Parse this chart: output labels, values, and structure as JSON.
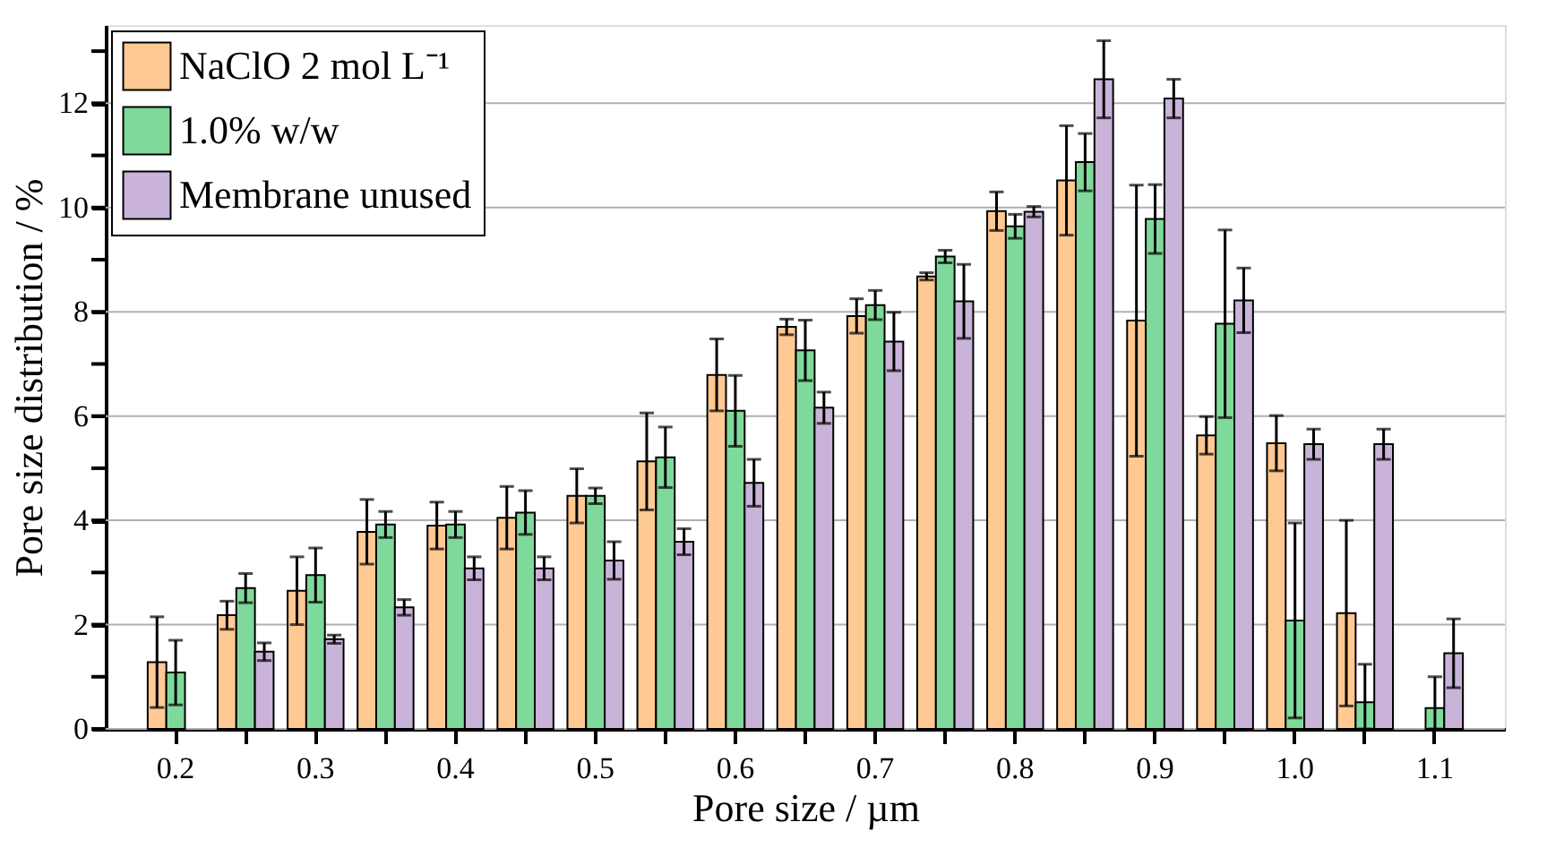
{
  "chart_data": {
    "type": "bar",
    "xlabel": "Pore size / µm",
    "ylabel": "Pore size distribution / %",
    "categories": [
      "0.2",
      null,
      "0.3",
      null,
      "0.4",
      null,
      "0.5",
      null,
      "0.6",
      null,
      "0.7",
      null,
      "0.8",
      null,
      "0.9",
      null,
      "1.0",
      null,
      "1.1"
    ],
    "series": [
      {
        "name": "NaClO 2 mol L⁻¹",
        "color": "#ffc993",
        "values": [
          1.28,
          2.18,
          2.65,
          3.78,
          3.9,
          4.05,
          4.47,
          5.13,
          6.79,
          7.71,
          7.92,
          8.68,
          9.93,
          10.52,
          7.83,
          5.63,
          5.48,
          2.22,
          null
        ],
        "errors": [
          0.87,
          0.27,
          0.65,
          0.62,
          0.45,
          0.6,
          0.52,
          0.93,
          0.69,
          0.15,
          0.33,
          0.07,
          0.37,
          1.05,
          2.6,
          0.36,
          0.53,
          1.78,
          null
        ]
      },
      {
        "name": "1.0% w/w",
        "color": "#7fd99b",
        "values": [
          1.08,
          2.7,
          2.95,
          3.92,
          3.92,
          4.15,
          4.47,
          5.21,
          6.1,
          7.26,
          8.13,
          9.06,
          9.64,
          10.87,
          9.78,
          7.77,
          2.08,
          0.51,
          0.4
        ],
        "errors": [
          0.62,
          0.28,
          0.52,
          0.25,
          0.25,
          0.42,
          0.15,
          0.58,
          0.68,
          0.58,
          0.28,
          0.12,
          0.23,
          0.55,
          0.66,
          1.8,
          1.87,
          [
            0,
            1.24
          ],
          [
            0,
            1.0
          ]
        ]
      },
      {
        "name": "Membrane unused",
        "color": "#c9b3d9",
        "values": [
          null,
          1.48,
          1.72,
          2.33,
          3.08,
          3.08,
          3.23,
          3.59,
          4.72,
          6.16,
          7.43,
          8.2,
          9.92,
          12.46,
          12.09,
          8.22,
          5.46,
          5.46,
          1.45
        ],
        "errors": [
          null,
          0.17,
          0.08,
          0.15,
          0.22,
          0.22,
          0.36,
          0.25,
          0.45,
          0.3,
          0.56,
          0.71,
          0.1,
          0.74,
          0.37,
          0.62,
          0.29,
          0.29,
          0.66
        ]
      }
    ],
    "ylim": [
      0,
      13.5
    ],
    "yticks": [
      0,
      {
        "value": 1,
        "label": null
      },
      2,
      {
        "value": 3,
        "label": null
      },
      4,
      {
        "value": 5,
        "label": null
      },
      6,
      {
        "value": 7,
        "label": null
      },
      8,
      {
        "value": 9,
        "label": null
      },
      10,
      {
        "value": 11,
        "label": null
      },
      12,
      {
        "value": 13,
        "label": null
      }
    ],
    "grid": "y",
    "legend": "top left"
  }
}
